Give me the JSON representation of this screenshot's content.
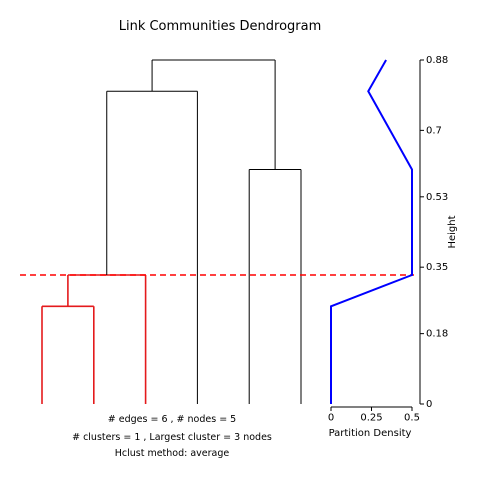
{
  "chart_data": {
    "type": "dendrogram",
    "title": "Link Communities Dendrogram",
    "ylabel": "Height",
    "ylim": [
      0,
      0.88
    ],
    "yticks": [
      "0",
      "0.18",
      "0.35",
      "0.53",
      "0.7",
      "0.88"
    ],
    "cut_height": 0.33,
    "colors": {
      "cluster": "#e41a1c",
      "tree": "#000000",
      "cut_line": "#ff0000",
      "density": "#0000ff"
    },
    "leaves": 6,
    "merges": [
      {
        "left": 1,
        "right": 2,
        "height": 0.25,
        "cluster": true
      },
      {
        "left": "m1",
        "right": 3,
        "height": 0.33,
        "cluster": true
      },
      {
        "left": 5,
        "right": 6,
        "height": 0.6,
        "cluster": false
      },
      {
        "left": "m2",
        "right": 4,
        "height": 0.8,
        "cluster": false
      },
      {
        "left": "m4",
        "right": "m3",
        "height": 0.88,
        "cluster": false
      }
    ],
    "partition_density": {
      "xlabel": "Partition Density",
      "xticks": [
        "0",
        "0.25",
        "0.5"
      ],
      "xlim": [
        0,
        0.5
      ],
      "points": [
        {
          "height": 0,
          "density": 0
        },
        {
          "height": 0.25,
          "density": 0
        },
        {
          "height": 0.33,
          "density": 0.5
        },
        {
          "height": 0.6,
          "density": 0.5
        },
        {
          "height": 0.8,
          "density": 0.23
        },
        {
          "height": 0.88,
          "density": 0.34
        }
      ]
    },
    "annotations": [
      "# edges =  6 ,   # nodes =  5",
      "# clusters =  1 ,   Largest cluster =  3  nodes",
      "Hclust method:  average"
    ]
  }
}
